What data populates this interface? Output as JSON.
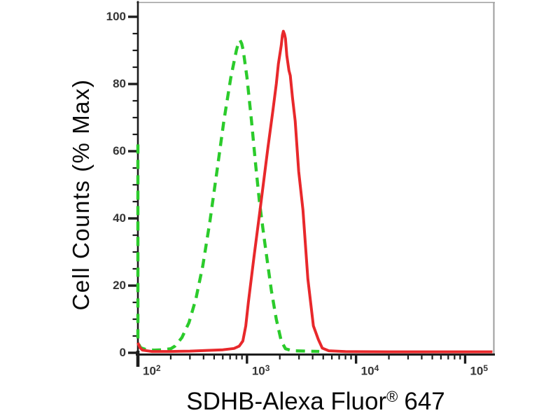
{
  "figure": {
    "background": "#ffffff",
    "colors": {
      "axis": "#1c1c1c",
      "frame_gray": "#9c9c9c",
      "tick_label": "#353535",
      "axis_title": "#090909"
    }
  },
  "chart_data": {
    "type": "line",
    "subtype": "flow-cytometry-histogram-overlay",
    "title": "",
    "xlabel": "SDHB-Alexa Fluor® 647",
    "xlabel_parts": {
      "main": "SDHB-Alexa Fluor",
      "sup": "®",
      "tail": "647"
    },
    "ylabel": "Cell Counts (% Max)",
    "x_scale": "log10",
    "x_range": [
      100,
      182000
    ],
    "y_range": [
      0,
      104
    ],
    "grid": false,
    "legend": "none",
    "x_major_ticks": [
      100,
      1000,
      10000,
      100000
    ],
    "x_tick_labels": [
      {
        "base": "10",
        "exp": "2"
      },
      {
        "base": "10",
        "exp": "3"
      },
      {
        "base": "10",
        "exp": "4"
      },
      {
        "base": "10",
        "exp": "5"
      }
    ],
    "x_minor_multiples": [
      2,
      3,
      4,
      5,
      6,
      7,
      8,
      9
    ],
    "y_major_ticks": [
      0,
      20,
      40,
      60,
      80,
      100
    ],
    "y_tick_labels": [
      "0",
      "20",
      "40",
      "60",
      "80",
      "100"
    ],
    "y_minor_step": 5,
    "series": [
      {
        "name": "green dashed curve (control)",
        "line": "dashed",
        "color": "#2bcb2b",
        "stroke_width": 4.4,
        "dash": [
          13,
          9
        ],
        "peak": {
          "x": 860,
          "y": 93
        },
        "points": [
          [
            100,
            62
          ],
          [
            100,
            30
          ],
          [
            100,
            3
          ],
          [
            106,
            1.5
          ],
          [
            118,
            1
          ],
          [
            140,
            0.8
          ],
          [
            170,
            0.9
          ],
          [
            200,
            1.2
          ],
          [
            219,
            2
          ],
          [
            253,
            4.5
          ],
          [
            294,
            9
          ],
          [
            340,
            16
          ],
          [
            394,
            26
          ],
          [
            457,
            39
          ],
          [
            530,
            54
          ],
          [
            614,
            69
          ],
          [
            712,
            82
          ],
          [
            800,
            90
          ],
          [
            830,
            92
          ],
          [
            863,
            93
          ],
          [
            895,
            92
          ],
          [
            925,
            90
          ],
          [
            1000,
            82
          ],
          [
            1100,
            69
          ],
          [
            1200,
            56
          ],
          [
            1300,
            45
          ],
          [
            1425,
            35
          ],
          [
            1556,
            26
          ],
          [
            1675,
            18.5
          ],
          [
            1858,
            10
          ],
          [
            2061,
            3.5
          ],
          [
            2254,
            1.2
          ],
          [
            2600,
            0.6
          ],
          [
            3400,
            0.5
          ],
          [
            4600,
            0.4
          ]
        ]
      },
      {
        "name": "red solid curve (SDHB stained)",
        "line": "solid",
        "color": "#e8282b",
        "stroke_width": 4,
        "dash": null,
        "peak": {
          "x": 2150,
          "y": 95.7
        },
        "points": [
          [
            100,
            3
          ],
          [
            104,
            1.6
          ],
          [
            110,
            0.8
          ],
          [
            135,
            0.4
          ],
          [
            200,
            0.4
          ],
          [
            300,
            0.5
          ],
          [
            430,
            0.7
          ],
          [
            600,
            0.9
          ],
          [
            760,
            1.3
          ],
          [
            850,
            2
          ],
          [
            916,
            3.5
          ],
          [
            975,
            8
          ],
          [
            1030,
            15
          ],
          [
            1159,
            28.5
          ],
          [
            1324,
            43
          ],
          [
            1556,
            61
          ],
          [
            1726,
            72
          ],
          [
            1858,
            80
          ],
          [
            1941,
            86
          ],
          [
            2061,
            91.5
          ],
          [
            2110,
            94.5
          ],
          [
            2154,
            95.7
          ],
          [
            2210,
            94.8
          ],
          [
            2254,
            93.5
          ],
          [
            2317,
            88.5
          ],
          [
            2426,
            84
          ],
          [
            2496,
            82.5
          ],
          [
            2612,
            76
          ],
          [
            2767,
            69
          ],
          [
            2979,
            54
          ],
          [
            3258,
            42.5
          ],
          [
            3614,
            22
          ],
          [
            4064,
            8
          ],
          [
            4508,
            4
          ],
          [
            4900,
            1.4
          ],
          [
            5623,
            0.6
          ],
          [
            8000,
            0.35
          ],
          [
            20000,
            0.3
          ],
          [
            60000,
            0.3
          ],
          [
            178000,
            0.3
          ]
        ]
      }
    ]
  }
}
